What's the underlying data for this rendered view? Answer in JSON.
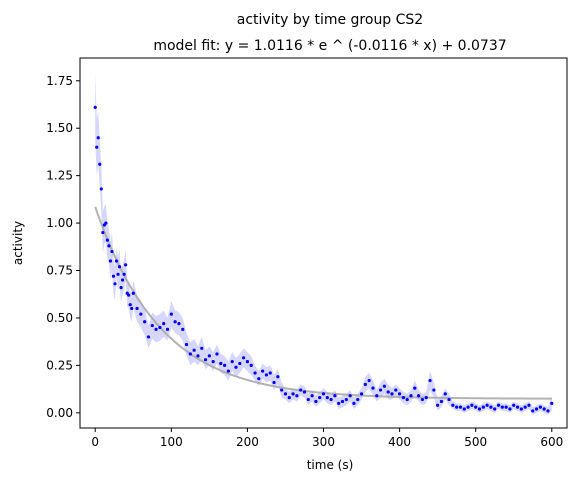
{
  "chart_data": {
    "type": "scatter",
    "title": "activity by time group CS2",
    "subtitle": "model fit: y = 1.0116 * e ^ (-0.0116 * x) + 0.0737",
    "xlabel": "time (s)",
    "ylabel": "activity",
    "xlim": [
      -20,
      620
    ],
    "ylim": [
      -0.08,
      1.87
    ],
    "x_ticks": [
      0,
      100,
      200,
      300,
      400,
      500,
      600
    ],
    "x_tick_labels": [
      "0",
      "100",
      "200",
      "300",
      "400",
      "500",
      "600"
    ],
    "y_ticks": [
      0.0,
      0.25,
      0.5,
      0.75,
      1.0,
      1.25,
      1.5,
      1.75
    ],
    "y_tick_labels": [
      "0.00",
      "0.25",
      "0.50",
      "0.75",
      "1.00",
      "1.25",
      "1.50",
      "1.75"
    ],
    "grid": false,
    "colors": {
      "points": "#0000ff",
      "error_band": "#8a8aff",
      "fit": "#aaaaaa"
    },
    "fit_model": {
      "a": 1.0116,
      "b": -0.0116,
      "c": 0.0737
    },
    "series": [
      {
        "name": "",
        "kind": "points_with_error",
        "x": [
          0,
          2,
          4,
          6,
          8,
          10,
          12,
          14,
          16,
          18,
          20,
          22,
          24,
          26,
          28,
          30,
          32,
          34,
          36,
          38,
          40,
          42,
          44,
          46,
          48,
          50,
          55,
          60,
          65,
          70,
          75,
          80,
          85,
          90,
          95,
          100,
          105,
          110,
          115,
          120,
          125,
          130,
          135,
          140,
          145,
          150,
          155,
          160,
          165,
          170,
          175,
          180,
          185,
          190,
          195,
          200,
          205,
          210,
          215,
          220,
          225,
          230,
          235,
          240,
          245,
          250,
          255,
          260,
          265,
          270,
          275,
          280,
          285,
          290,
          295,
          300,
          305,
          310,
          315,
          320,
          325,
          330,
          335,
          340,
          345,
          350,
          355,
          360,
          365,
          370,
          375,
          380,
          385,
          390,
          395,
          400,
          405,
          410,
          415,
          420,
          425,
          430,
          435,
          440,
          445,
          450,
          455,
          460,
          465,
          470,
          475,
          480,
          485,
          490,
          495,
          500,
          505,
          510,
          515,
          520,
          525,
          530,
          535,
          540,
          545,
          550,
          555,
          560,
          565,
          570,
          575,
          580,
          585,
          590,
          595,
          600
        ],
        "y": [
          1.61,
          1.4,
          1.45,
          1.31,
          1.18,
          0.95,
          0.99,
          1.0,
          0.91,
          0.88,
          0.8,
          0.85,
          0.72,
          0.68,
          0.8,
          0.73,
          0.77,
          0.66,
          0.7,
          0.73,
          0.78,
          0.63,
          0.62,
          0.57,
          0.55,
          0.63,
          0.55,
          0.52,
          0.48,
          0.4,
          0.46,
          0.44,
          0.45,
          0.47,
          0.44,
          0.52,
          0.48,
          0.47,
          0.44,
          0.36,
          0.31,
          0.33,
          0.3,
          0.34,
          0.28,
          0.3,
          0.27,
          0.31,
          0.26,
          0.25,
          0.22,
          0.27,
          0.24,
          0.26,
          0.29,
          0.27,
          0.25,
          0.21,
          0.18,
          0.22,
          0.2,
          0.21,
          0.16,
          0.19,
          0.12,
          0.1,
          0.08,
          0.1,
          0.09,
          0.12,
          0.11,
          0.07,
          0.09,
          0.06,
          0.08,
          0.1,
          0.08,
          0.07,
          0.09,
          0.05,
          0.06,
          0.07,
          0.09,
          0.05,
          0.07,
          0.1,
          0.15,
          0.17,
          0.13,
          0.09,
          0.12,
          0.14,
          0.11,
          0.1,
          0.12,
          0.1,
          0.08,
          0.07,
          0.09,
          0.13,
          0.09,
          0.07,
          0.08,
          0.17,
          0.12,
          0.04,
          0.06,
          0.1,
          0.07,
          0.04,
          0.03,
          0.03,
          0.02,
          0.03,
          0.04,
          0.03,
          0.02,
          0.03,
          0.04,
          0.03,
          0.02,
          0.04,
          0.03,
          0.03,
          0.02,
          0.04,
          0.03,
          0.02,
          0.03,
          0.04,
          0.01,
          0.02,
          0.03,
          0.02,
          0.01,
          0.05
        ],
        "err": [
          0.18,
          0.15,
          0.14,
          0.12,
          0.12,
          0.11,
          0.1,
          0.1,
          0.1,
          0.09,
          0.1,
          0.1,
          0.09,
          0.09,
          0.08,
          0.09,
          0.09,
          0.08,
          0.08,
          0.08,
          0.08,
          0.07,
          0.07,
          0.07,
          0.07,
          0.07,
          0.07,
          0.07,
          0.07,
          0.06,
          0.07,
          0.07,
          0.07,
          0.07,
          0.06,
          0.07,
          0.06,
          0.06,
          0.06,
          0.06,
          0.06,
          0.06,
          0.05,
          0.06,
          0.05,
          0.05,
          0.05,
          0.05,
          0.05,
          0.05,
          0.05,
          0.05,
          0.05,
          0.05,
          0.05,
          0.05,
          0.05,
          0.04,
          0.04,
          0.04,
          0.04,
          0.04,
          0.04,
          0.04,
          0.04,
          0.03,
          0.03,
          0.03,
          0.03,
          0.03,
          0.03,
          0.03,
          0.03,
          0.03,
          0.03,
          0.03,
          0.03,
          0.03,
          0.03,
          0.03,
          0.03,
          0.03,
          0.03,
          0.03,
          0.03,
          0.03,
          0.04,
          0.04,
          0.04,
          0.03,
          0.04,
          0.04,
          0.04,
          0.03,
          0.03,
          0.03,
          0.03,
          0.03,
          0.03,
          0.04,
          0.03,
          0.03,
          0.03,
          0.05,
          0.04,
          0.03,
          0.03,
          0.03,
          0.03,
          0.02,
          0.02,
          0.02,
          0.02,
          0.02,
          0.02,
          0.02,
          0.02,
          0.02,
          0.02,
          0.02,
          0.02,
          0.02,
          0.02,
          0.02,
          0.02,
          0.02,
          0.02,
          0.02,
          0.02,
          0.02,
          0.02,
          0.02,
          0.02,
          0.02,
          0.02,
          0.04
        ]
      },
      {
        "name": "",
        "kind": "fit_line",
        "x_range": [
          0,
          600
        ]
      }
    ]
  }
}
